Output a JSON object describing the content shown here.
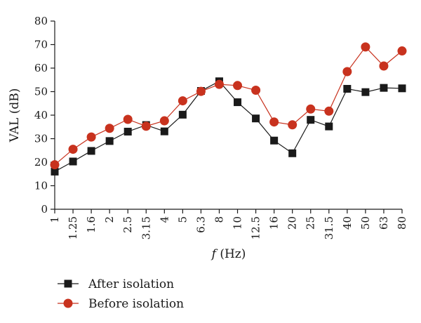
{
  "chart_data": {
    "type": "line",
    "x_categories": [
      "1",
      "1.25",
      "1.6",
      "2",
      "2.5",
      "3.15",
      "4",
      "5",
      "6.3",
      "8",
      "10",
      "12.5",
      "16",
      "20",
      "25",
      "31.5",
      "40",
      "50",
      "63",
      "80"
    ],
    "y_ticks": [
      "0",
      "10",
      "20",
      "30",
      "40",
      "50",
      "60",
      "70",
      "80"
    ],
    "ylim": [
      0,
      80
    ],
    "xlabel_italic": "f",
    "xlabel_rest": " (Hz)",
    "ylabel": "VAL (dB)",
    "grid": false,
    "legend_position": "bottom-left",
    "series": [
      {
        "name": "After isolation",
        "color": "#1a1a1a",
        "marker": "square",
        "values": [
          16,
          20.3,
          24.8,
          29,
          33,
          35.8,
          33.1,
          40.2,
          50.3,
          54.4,
          45.5,
          38.6,
          29.2,
          23.8,
          38,
          35.2,
          51.2,
          49.8,
          51.6,
          51.4
        ]
      },
      {
        "name": "Before isolation",
        "color": "#c8321e",
        "marker": "circle",
        "values": [
          18.9,
          25.5,
          30.7,
          34.4,
          38.2,
          35.3,
          37.6,
          46.1,
          50.1,
          53.1,
          52.6,
          50.6,
          37.1,
          35.9,
          42.6,
          41.7,
          58.5,
          69,
          60.9,
          67.3
        ]
      }
    ]
  }
}
